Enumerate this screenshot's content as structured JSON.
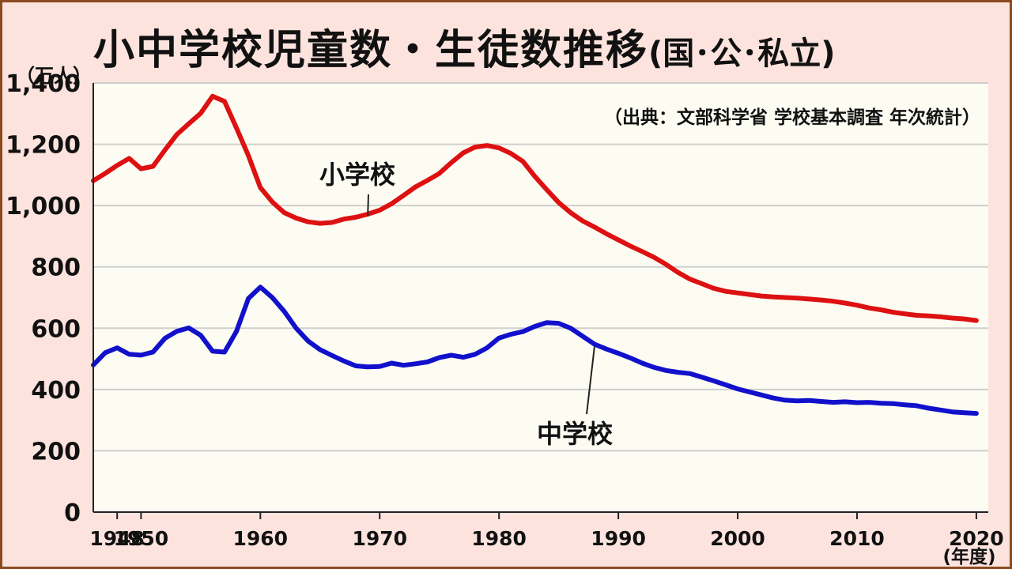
{
  "title": {
    "main": "小中学校児童数・生徒数推移",
    "sub": "(国･公･私立)"
  },
  "chart_data": {
    "type": "line",
    "title": "小中学校児童数・生徒数推移(国･公･私立)",
    "source_note": "（出典：文部科学省 学校基本調査 年次統計）",
    "ylabel": "（万人）",
    "xlabel": "(年度)",
    "xlim": [
      1946,
      2021
    ],
    "ylim": [
      0,
      1400
    ],
    "yticks": [
      0,
      200,
      400,
      600,
      800,
      1000,
      1200,
      1400
    ],
    "ytick_labels": [
      "0",
      "200",
      "400",
      "600",
      "800",
      "1,000",
      "1,200",
      "1,400"
    ],
    "xticks": [
      1948,
      1950,
      1960,
      1970,
      1980,
      1990,
      2000,
      2010,
      2020
    ],
    "xtick_labels": [
      "1948",
      "1950",
      "1960",
      "1970",
      "1980",
      "1990",
      "2000",
      "2010",
      "2020"
    ],
    "grid": true,
    "colors": {
      "小学校": "#dd1111",
      "中学校": "#1111cc",
      "background": "#fdfcf3",
      "frame": "#fde3dd"
    },
    "series": [
      {
        "name": "小学校",
        "x": [
          1946,
          1947,
          1948,
          1949,
          1950,
          1951,
          1952,
          1953,
          1954,
          1955,
          1956,
          1957,
          1958,
          1959,
          1960,
          1961,
          1962,
          1963,
          1964,
          1965,
          1966,
          1967,
          1968,
          1969,
          1970,
          1971,
          1972,
          1973,
          1974,
          1975,
          1976,
          1977,
          1978,
          1979,
          1980,
          1981,
          1982,
          1983,
          1984,
          1985,
          1986,
          1987,
          1988,
          1989,
          1990,
          1991,
          1992,
          1993,
          1994,
          1995,
          1996,
          1997,
          1998,
          1999,
          2000,
          2001,
          2002,
          2003,
          2004,
          2005,
          2006,
          2007,
          2008,
          2009,
          2010,
          2011,
          2012,
          2013,
          2014,
          2015,
          2016,
          2017,
          2018,
          2019,
          2020
        ],
        "values": [
          1081,
          1105,
          1131,
          1154,
          1120,
          1128,
          1181,
          1232,
          1267,
          1301,
          1357,
          1340,
          1253,
          1163,
          1059,
          1012,
          977,
          959,
          947,
          942,
          945,
          956,
          962,
          972,
          985,
          1006,
          1033,
          1061,
          1082,
          1105,
          1140,
          1172,
          1191,
          1196,
          1188,
          1170,
          1144,
          1095,
          1052,
          1010,
          977,
          950,
          930,
          908,
          888,
          868,
          850,
          831,
          808,
          782,
          760,
          745,
          730,
          720,
          715,
          710,
          705,
          702,
          700,
          698,
          695,
          692,
          688,
          682,
          675,
          666,
          660,
          652,
          647,
          642,
          640,
          637,
          633,
          630,
          625
        ]
      },
      {
        "name": "中学校",
        "x": [
          1946,
          1947,
          1948,
          1949,
          1950,
          1951,
          1952,
          1953,
          1954,
          1955,
          1956,
          1957,
          1958,
          1959,
          1960,
          1961,
          1962,
          1963,
          1964,
          1965,
          1966,
          1967,
          1968,
          1969,
          1970,
          1971,
          1972,
          1973,
          1974,
          1975,
          1976,
          1977,
          1978,
          1979,
          1980,
          1981,
          1982,
          1983,
          1984,
          1985,
          1986,
          1987,
          1988,
          1989,
          1990,
          1991,
          1992,
          1993,
          1994,
          1995,
          1996,
          1997,
          1998,
          1999,
          2000,
          2001,
          2002,
          2003,
          2004,
          2005,
          2006,
          2007,
          2008,
          2009,
          2010,
          2011,
          2012,
          2013,
          2014,
          2015,
          2016,
          2017,
          2018,
          2019,
          2020
        ],
        "values": [
          480,
          520,
          536,
          515,
          512,
          522,
          567,
          590,
          601,
          577,
          525,
          522,
          590,
          697,
          734,
          700,
          655,
          600,
          558,
          530,
          511,
          493,
          477,
          474,
          475,
          486,
          479,
          484,
          490,
          504,
          512,
          505,
          515,
          536,
          568,
          580,
          589,
          606,
          618,
          616,
          600,
          574,
          548,
          532,
          518,
          503,
          486,
          472,
          462,
          456,
          452,
          440,
          428,
          415,
          402,
          392,
          382,
          372,
          365,
          363,
          364,
          361,
          358,
          360,
          357,
          358,
          355,
          354,
          350,
          347,
          339,
          333,
          327,
          324,
          322
        ]
      }
    ],
    "annotations": [
      {
        "text": "小学校",
        "series": "小学校",
        "points_to": [
          1969,
          965
        ]
      },
      {
        "text": "中学校",
        "series": "中学校",
        "points_to": [
          1988,
          540
        ]
      }
    ]
  }
}
